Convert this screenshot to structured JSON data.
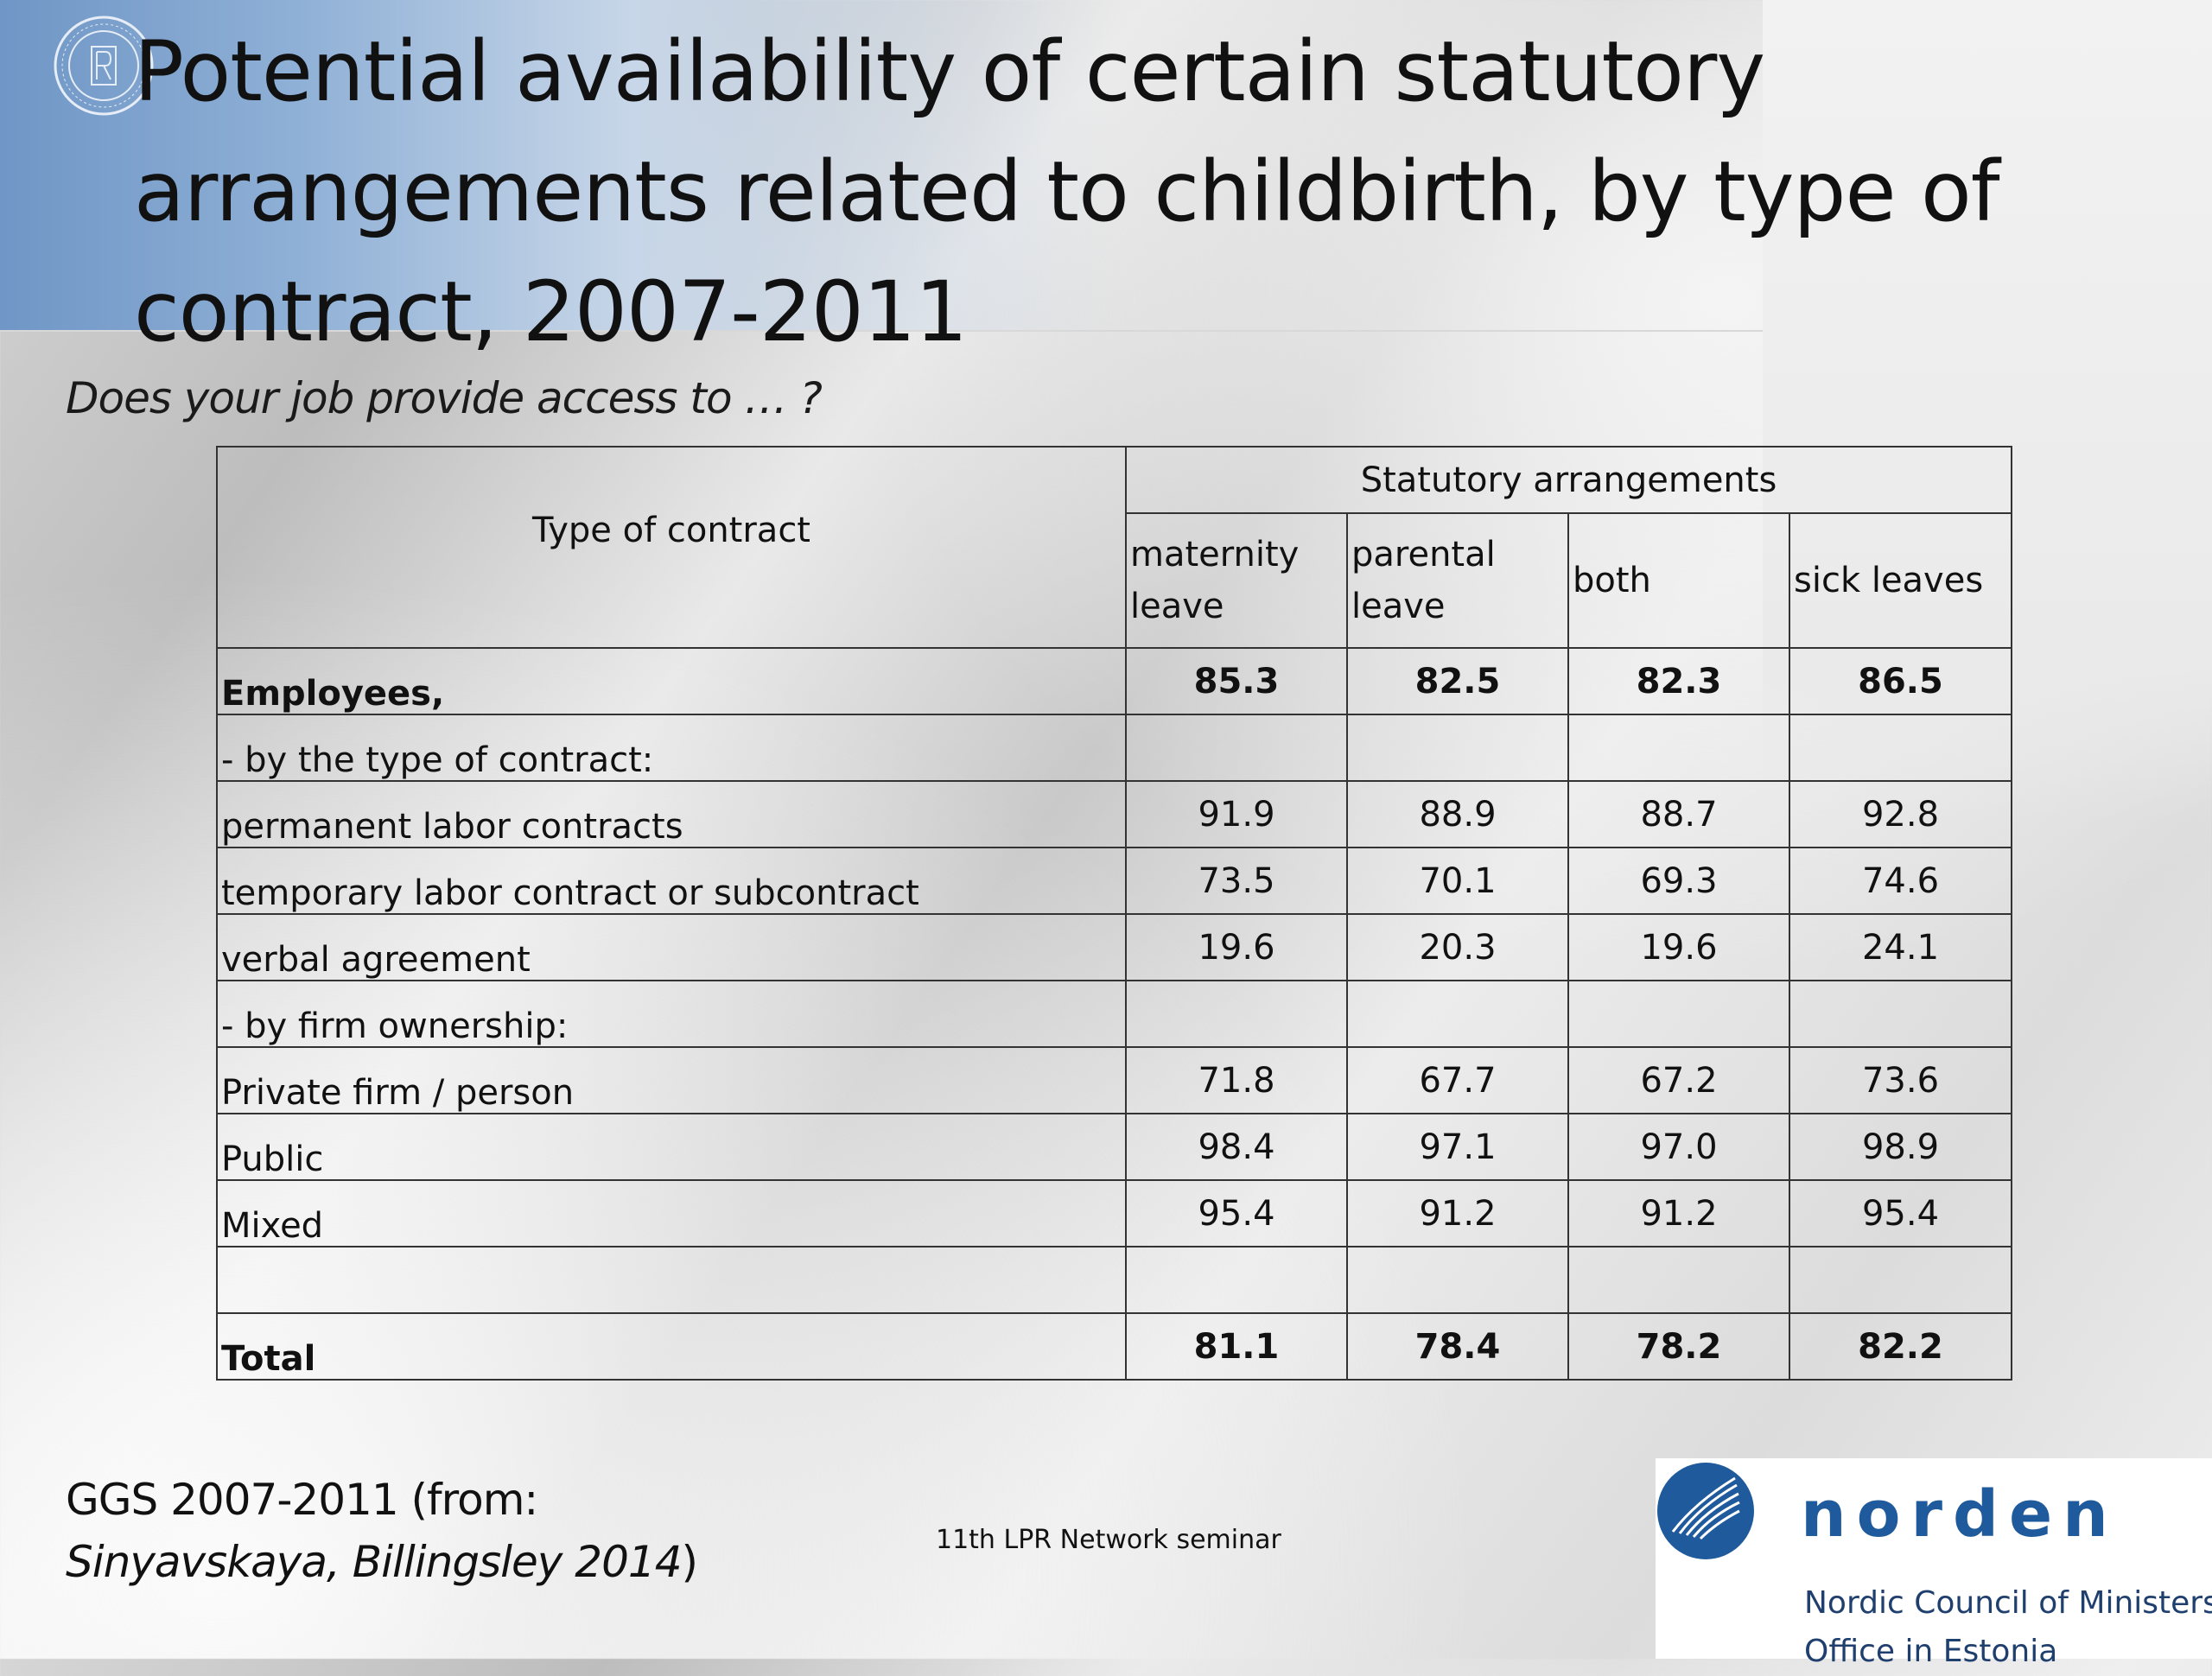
{
  "slide": {
    "title": "Potential availability of certain statutory arrangements related to childbirth, by type of contract, 2007-2011",
    "subtitle": "Does your job provide access to … ?"
  },
  "table": {
    "stub_header": "Type of contract",
    "group_header": "Statutory arrangements",
    "columns": [
      "maternity leave",
      "parental leave",
      "both",
      "sick leaves"
    ],
    "rows": [
      {
        "label": "Employees,",
        "bold": true,
        "values": [
          "85.3",
          "82.5",
          "82.3",
          "86.5"
        ]
      },
      {
        "label": "- by the type of contract:",
        "bold": false,
        "values": [
          "",
          "",
          "",
          ""
        ]
      },
      {
        "label": "permanent labor contracts",
        "bold": false,
        "values": [
          "91.9",
          "88.9",
          "88.7",
          "92.8"
        ]
      },
      {
        "label": "temporary labor contract or subcontract",
        "bold": false,
        "values": [
          "73.5",
          "70.1",
          "69.3",
          "74.6"
        ]
      },
      {
        "label": "verbal agreement",
        "bold": false,
        "values": [
          "19.6",
          "20.3",
          "19.6",
          "24.1"
        ]
      },
      {
        "label": "- by firm ownership:",
        "bold": false,
        "values": [
          "",
          "",
          "",
          ""
        ]
      },
      {
        "label": "Private firm / person",
        "bold": false,
        "values": [
          "71.8",
          "67.7",
          "67.2",
          "73.6"
        ]
      },
      {
        "label": "Public",
        "bold": false,
        "values": [
          "98.4",
          "97.1",
          "97.0",
          "98.9"
        ]
      },
      {
        "label": "Mixed",
        "bold": false,
        "values": [
          "95.4",
          "91.2",
          "91.2",
          "95.4"
        ]
      },
      {
        "label": "",
        "bold": false,
        "values": [
          "",
          "",
          "",
          ""
        ]
      },
      {
        "label": "Total",
        "bold": true,
        "values": [
          "81.1",
          "78.4",
          "78.2",
          "82.2"
        ]
      }
    ]
  },
  "footer": {
    "source_line1": "GGS 2007-2011 (from:",
    "source_citation": "Sinyavskaya, Billingsley 2014",
    "source_close": ")",
    "seminar": "11th LPR Network seminar"
  },
  "logo": {
    "wordmark": "norden",
    "org_line1": "Nordic Council of Ministers’",
    "org_line2": "Office in Estonia",
    "brand_color": "#1f5a9c"
  },
  "icons": {
    "university_emblem": "university-emblem-icon",
    "norden_swan": "norden-swan-icon"
  }
}
